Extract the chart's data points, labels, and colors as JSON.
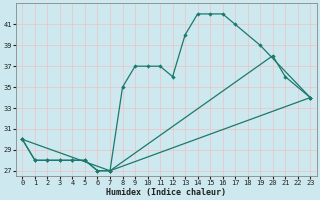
{
  "xlabel": "Humidex (Indice chaleur)",
  "background_color": "#cde8ee",
  "grid_color": "#e8c8c8",
  "line_color": "#1a7a6e",
  "xlim": [
    -0.5,
    23.5
  ],
  "ylim": [
    26.5,
    43
  ],
  "yticks": [
    27,
    29,
    31,
    33,
    35,
    37,
    39,
    41
  ],
  "xticks": [
    0,
    1,
    2,
    3,
    4,
    5,
    6,
    7,
    8,
    9,
    10,
    11,
    12,
    13,
    14,
    15,
    16,
    17,
    18,
    19,
    20,
    21,
    22,
    23
  ],
  "line1_x": [
    0,
    1,
    2,
    3,
    4,
    5,
    6,
    7,
    8,
    9,
    10,
    11,
    12,
    13,
    14,
    15,
    16,
    17,
    19,
    23
  ],
  "line1_y": [
    30,
    28,
    28,
    28,
    28,
    28,
    27,
    27,
    35,
    37,
    37,
    37,
    36,
    40,
    42,
    42,
    42,
    41,
    39,
    34
  ],
  "line2_x": [
    0,
    1,
    2,
    3,
    4,
    5,
    6,
    7,
    20,
    21,
    23
  ],
  "line2_y": [
    30,
    28,
    28,
    28,
    28,
    28,
    27,
    27,
    38,
    36,
    34
  ],
  "line3_x": [
    0,
    7,
    23
  ],
  "line3_y": [
    30,
    27,
    34
  ]
}
